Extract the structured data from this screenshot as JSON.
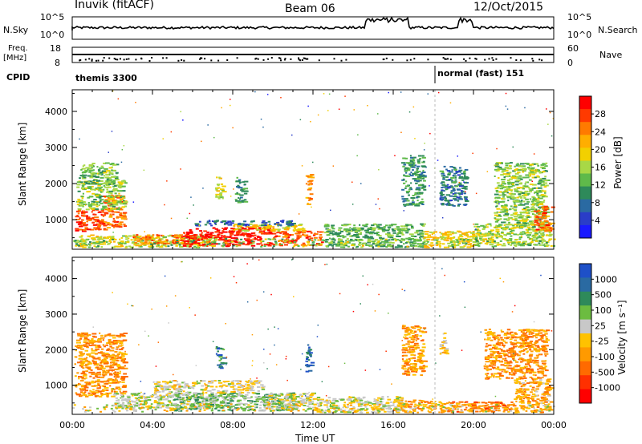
{
  "header": {
    "station": "Inuvik (fitACF)",
    "beam": "Beam 06",
    "date": "12/Oct/2015"
  },
  "top_panels": {
    "nsky_label": "N.Sky",
    "nsearch_label": "N.Search",
    "freq_label": "Freq.",
    "freq_unit": "[MHz]",
    "nave_label": "Nave",
    "cpid_label": "CPID",
    "left_ticks_sky": [
      "10^5",
      "10^0"
    ],
    "right_ticks_sky": [
      "10^5",
      "10^0"
    ],
    "left_ticks_freq": [
      "18",
      "8"
    ],
    "right_ticks_freq": [
      "60",
      "0"
    ],
    "cpid_segments": [
      {
        "name": "themis 3300",
        "start_hour": 0
      },
      {
        "name": "normal (fast) 151",
        "start_hour": 18.1
      }
    ]
  },
  "colorbars": {
    "power": {
      "label": "Power [dB]",
      "ticks": [
        "28",
        "24",
        "20",
        "16",
        "12",
        "8",
        "4"
      ],
      "colors": [
        "#ff0000",
        "#ff3a00",
        "#ff7a00",
        "#ffae00",
        "#f2d000",
        "#a8d846",
        "#5fba4a",
        "#2e8a5a",
        "#2a6aa2",
        "#2a3dc8",
        "#1a1aff"
      ]
    },
    "velocity": {
      "label": "Velocity [m s⁻¹]",
      "ticks": [
        "1000",
        "500",
        "100",
        "25",
        "-25",
        "-100",
        "-500",
        "-1000"
      ],
      "colors": [
        "#1e50c8",
        "#2a6aa2",
        "#2e8a5a",
        "#6cbc40",
        "#c8c8c8",
        "#ffc200",
        "#ff9a00",
        "#ff6a00",
        "#ff3000",
        "#ff0000"
      ]
    }
  },
  "axes": {
    "xlabel": "Time UT",
    "ylabel": "Slant Range [km]",
    "xticks": [
      "00:00",
      "04:00",
      "08:00",
      "12:00",
      "16:00",
      "20:00",
      "00:00"
    ],
    "yticks": [
      "1000",
      "2000",
      "3000",
      "4000"
    ]
  },
  "chart_data": [
    {
      "type": "heatmap",
      "title": "Beam 06",
      "xlabel": "Time UT",
      "ylabel": "Slant Range [km]",
      "quantity": "Power [dB]",
      "xlim": [
        0,
        24
      ],
      "ylim": [
        180,
        4600
      ],
      "clim": [
        0,
        30
      ],
      "patches": [
        {
          "t0": 0.1,
          "t1": 1.6,
          "r0": 700,
          "r1": 1300,
          "v": 26
        },
        {
          "t0": 1.5,
          "t1": 2.6,
          "r0": 800,
          "r1": 1700,
          "v": 24
        },
        {
          "t0": 0.2,
          "t1": 2.6,
          "r0": 1300,
          "r1": 2100,
          "v": 14
        },
        {
          "t0": 0.3,
          "t1": 2.2,
          "r0": 2000,
          "r1": 2600,
          "v": 13
        },
        {
          "t0": 0.1,
          "t1": 7.0,
          "r0": 250,
          "r1": 600,
          "v": 16
        },
        {
          "t0": 3.0,
          "t1": 6.0,
          "r0": 350,
          "r1": 600,
          "v": 24
        },
        {
          "t0": 5.5,
          "t1": 10.0,
          "r0": 280,
          "r1": 800,
          "v": 28
        },
        {
          "t0": 10.0,
          "t1": 12.4,
          "r0": 300,
          "r1": 700,
          "v": 25
        },
        {
          "t0": 8.0,
          "t1": 11.5,
          "r0": 700,
          "r1": 900,
          "v": 18
        },
        {
          "t0": 6.0,
          "t1": 11.0,
          "r0": 850,
          "r1": 1000,
          "v": 7
        },
        {
          "t0": 12.5,
          "t1": 17.5,
          "r0": 250,
          "r1": 900,
          "v": 12
        },
        {
          "t0": 17.5,
          "t1": 20.0,
          "r0": 250,
          "r1": 700,
          "v": 18
        },
        {
          "t0": 20.0,
          "t1": 23.8,
          "r0": 300,
          "r1": 900,
          "v": 15
        },
        {
          "t0": 7.1,
          "t1": 7.5,
          "r0": 1600,
          "r1": 2200,
          "v": 16
        },
        {
          "t0": 8.1,
          "t1": 8.6,
          "r0": 1500,
          "r1": 2200,
          "v": 10
        },
        {
          "t0": 11.6,
          "t1": 11.9,
          "r0": 1400,
          "r1": 2300,
          "v": 22
        },
        {
          "t0": 16.4,
          "t1": 17.5,
          "r0": 1400,
          "r1": 2800,
          "v": 10
        },
        {
          "t0": 18.3,
          "t1": 19.6,
          "r0": 1400,
          "r1": 2500,
          "v": 8
        },
        {
          "t0": 21.0,
          "t1": 23.6,
          "r0": 800,
          "r1": 2600,
          "v": 14
        },
        {
          "t0": 23.0,
          "t1": 23.9,
          "r0": 700,
          "r1": 1400,
          "v": 24
        }
      ]
    },
    {
      "type": "heatmap",
      "title": "Beam 06",
      "xlabel": "Time UT",
      "ylabel": "Slant Range [km]",
      "quantity": "Velocity [m s⁻¹]",
      "xlim": [
        0,
        24
      ],
      "ylim": [
        180,
        4600
      ],
      "clim": [
        -1000,
        1000
      ],
      "patches": [
        {
          "t0": 0.1,
          "t1": 2.6,
          "r0": 700,
          "r1": 2500,
          "v": -300
        },
        {
          "t0": 2.0,
          "t1": 7.0,
          "r0": 350,
          "r1": 800,
          "v": 150
        },
        {
          "t0": 5.0,
          "t1": 11.0,
          "r0": 300,
          "r1": 800,
          "v": 300
        },
        {
          "t0": 4.0,
          "t1": 9.5,
          "r0": 800,
          "r1": 1150,
          "v": 0
        },
        {
          "t0": 9.5,
          "t1": 12.0,
          "r0": 350,
          "r1": 800,
          "v": 80
        },
        {
          "t0": 12.0,
          "t1": 16.5,
          "r0": 250,
          "r1": 700,
          "v": 60
        },
        {
          "t0": 16.0,
          "t1": 18.5,
          "r0": 250,
          "r1": 600,
          "v": -250
        },
        {
          "t0": 18.5,
          "t1": 22.0,
          "r0": 250,
          "r1": 550,
          "v": -400
        },
        {
          "t0": 22.0,
          "t1": 23.8,
          "r0": 250,
          "r1": 1200,
          "v": -200
        },
        {
          "t0": 7.1,
          "t1": 7.5,
          "r0": 1500,
          "r1": 2100,
          "v": 600
        },
        {
          "t0": 11.6,
          "t1": 11.9,
          "r0": 1400,
          "r1": 2200,
          "v": 700
        },
        {
          "t0": 16.4,
          "t1": 17.5,
          "r0": 1300,
          "r1": 2700,
          "v": -300
        },
        {
          "t0": 18.3,
          "t1": 18.7,
          "r0": 1900,
          "r1": 2500,
          "v": 0
        },
        {
          "t0": 20.5,
          "t1": 23.6,
          "r0": 1200,
          "r1": 2600,
          "v": -350
        }
      ]
    }
  ]
}
